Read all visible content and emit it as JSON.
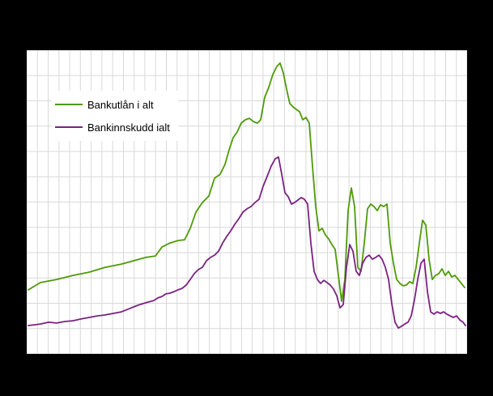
{
  "figure": {
    "background": "#000000",
    "plot_background": "#ffffff",
    "grid_color": "#d9d9d9"
  },
  "legend": {
    "items": [
      {
        "label": "Bankutlån i alt",
        "color": "#4e9a06"
      },
      {
        "label": "Bankinnskudd ialt",
        "color": "#7b2182"
      }
    ]
  },
  "chart_data": {
    "type": "line",
    "title": "",
    "xlabel": "",
    "ylabel": "",
    "legend_position": "top-left",
    "grid": {
      "on": true,
      "vertical_lines": 42,
      "horizontal_lines": 13
    },
    "y_axis": {
      "units_top": 12,
      "units_bottom": 0,
      "tick_labels_visible": false
    },
    "x_axis": {
      "tick_labels_visible": false
    },
    "series": [
      {
        "name": "Bankutlån i alt",
        "color": "#4e9a06",
        "points": [
          [
            2,
            2.53
          ],
          [
            17,
            2.82
          ],
          [
            37,
            2.94
          ],
          [
            57,
            3.1
          ],
          [
            77,
            3.23
          ],
          [
            97,
            3.42
          ],
          [
            117,
            3.55
          ],
          [
            132,
            3.68
          ],
          [
            147,
            3.81
          ],
          [
            159,
            3.87
          ],
          [
            167,
            4.22
          ],
          [
            177,
            4.38
          ],
          [
            187,
            4.48
          ],
          [
            195,
            4.51
          ],
          [
            202,
            4.96
          ],
          [
            209,
            5.6
          ],
          [
            217,
            5.98
          ],
          [
            225,
            6.24
          ],
          [
            232,
            6.94
          ],
          [
            239,
            7.1
          ],
          [
            245,
            7.49
          ],
          [
            250,
            8.06
          ],
          [
            255,
            8.54
          ],
          [
            260,
            8.77
          ],
          [
            265,
            9.12
          ],
          [
            270,
            9.25
          ],
          [
            275,
            9.31
          ],
          [
            280,
            9.18
          ],
          [
            285,
            9.12
          ],
          [
            289,
            9.25
          ],
          [
            294,
            10.14
          ],
          [
            299,
            10.53
          ],
          [
            304,
            11.04
          ],
          [
            309,
            11.36
          ],
          [
            313,
            11.49
          ],
          [
            317,
            11.1
          ],
          [
            321,
            10.46
          ],
          [
            325,
            9.89
          ],
          [
            329,
            9.76
          ],
          [
            333,
            9.66
          ],
          [
            337,
            9.57
          ],
          [
            341,
            9.25
          ],
          [
            345,
            9.34
          ],
          [
            349,
            9.12
          ],
          [
            353,
            7.42
          ],
          [
            357,
            5.82
          ],
          [
            361,
            4.86
          ],
          [
            365,
            4.96
          ],
          [
            369,
            4.7
          ],
          [
            373,
            4.54
          ],
          [
            377,
            4.32
          ],
          [
            381,
            4.13
          ],
          [
            385,
            3.1
          ],
          [
            389,
            2.08
          ],
          [
            393,
            2.94
          ],
          [
            397,
            5.66
          ],
          [
            401,
            6.56
          ],
          [
            405,
            5.82
          ],
          [
            409,
            3.42
          ],
          [
            413,
            3.26
          ],
          [
            417,
            4.38
          ],
          [
            421,
            5.73
          ],
          [
            425,
            5.92
          ],
          [
            429,
            5.82
          ],
          [
            433,
            5.66
          ],
          [
            437,
            5.89
          ],
          [
            441,
            5.82
          ],
          [
            445,
            5.92
          ],
          [
            449,
            4.38
          ],
          [
            453,
            3.58
          ],
          [
            457,
            2.94
          ],
          [
            461,
            2.78
          ],
          [
            465,
            2.69
          ],
          [
            469,
            2.72
          ],
          [
            473,
            2.85
          ],
          [
            477,
            2.78
          ],
          [
            481,
            3.42
          ],
          [
            485,
            4.38
          ],
          [
            489,
            5.28
          ],
          [
            493,
            5.09
          ],
          [
            497,
            3.74
          ],
          [
            501,
            2.94
          ],
          [
            505,
            3.1
          ],
          [
            509,
            3.17
          ],
          [
            513,
            3.36
          ],
          [
            517,
            3.1
          ],
          [
            521,
            3.26
          ],
          [
            525,
            3.04
          ],
          [
            529,
            3.1
          ],
          [
            533,
            2.94
          ],
          [
            537,
            2.78
          ],
          [
            541,
            2.62
          ]
        ]
      },
      {
        "name": "Bankinnskudd ialt",
        "color": "#7b2182",
        "points": [
          [
            2,
            1.12
          ],
          [
            17,
            1.18
          ],
          [
            27,
            1.25
          ],
          [
            37,
            1.22
          ],
          [
            47,
            1.28
          ],
          [
            57,
            1.31
          ],
          [
            67,
            1.38
          ],
          [
            77,
            1.44
          ],
          [
            87,
            1.5
          ],
          [
            97,
            1.54
          ],
          [
            107,
            1.6
          ],
          [
            117,
            1.66
          ],
          [
            127,
            1.79
          ],
          [
            137,
            1.92
          ],
          [
            147,
            2.02
          ],
          [
            157,
            2.11
          ],
          [
            162,
            2.21
          ],
          [
            167,
            2.27
          ],
          [
            172,
            2.37
          ],
          [
            177,
            2.4
          ],
          [
            182,
            2.46
          ],
          [
            187,
            2.53
          ],
          [
            192,
            2.59
          ],
          [
            197,
            2.72
          ],
          [
            202,
            2.94
          ],
          [
            207,
            3.17
          ],
          [
            212,
            3.33
          ],
          [
            217,
            3.42
          ],
          [
            222,
            3.68
          ],
          [
            227,
            3.81
          ],
          [
            232,
            3.9
          ],
          [
            237,
            4.06
          ],
          [
            242,
            4.38
          ],
          [
            247,
            4.64
          ],
          [
            252,
            4.86
          ],
          [
            257,
            5.12
          ],
          [
            262,
            5.34
          ],
          [
            267,
            5.6
          ],
          [
            272,
            5.73
          ],
          [
            277,
            5.82
          ],
          [
            282,
            5.98
          ],
          [
            287,
            6.11
          ],
          [
            292,
            6.62
          ],
          [
            297,
            7.01
          ],
          [
            302,
            7.42
          ],
          [
            307,
            7.71
          ],
          [
            311,
            7.78
          ],
          [
            315,
            7.1
          ],
          [
            319,
            6.37
          ],
          [
            323,
            6.21
          ],
          [
            327,
            5.92
          ],
          [
            331,
            5.98
          ],
          [
            335,
            6.08
          ],
          [
            339,
            6.18
          ],
          [
            343,
            6.11
          ],
          [
            347,
            5.92
          ],
          [
            351,
            4.38
          ],
          [
            355,
            3.26
          ],
          [
            359,
            2.94
          ],
          [
            363,
            2.78
          ],
          [
            367,
            2.91
          ],
          [
            371,
            2.82
          ],
          [
            375,
            2.72
          ],
          [
            379,
            2.56
          ],
          [
            383,
            2.3
          ],
          [
            387,
            1.82
          ],
          [
            391,
            1.95
          ],
          [
            395,
            3.42
          ],
          [
            399,
            4.32
          ],
          [
            403,
            4.06
          ],
          [
            407,
            3.26
          ],
          [
            411,
            3.1
          ],
          [
            415,
            3.58
          ],
          [
            419,
            3.81
          ],
          [
            423,
            3.9
          ],
          [
            427,
            3.74
          ],
          [
            431,
            3.81
          ],
          [
            435,
            3.9
          ],
          [
            439,
            3.74
          ],
          [
            443,
            3.42
          ],
          [
            447,
            2.94
          ],
          [
            451,
            1.98
          ],
          [
            455,
            1.25
          ],
          [
            459,
            1.02
          ],
          [
            463,
            1.09
          ],
          [
            467,
            1.18
          ],
          [
            471,
            1.25
          ],
          [
            475,
            1.5
          ],
          [
            479,
            2.14
          ],
          [
            483,
            2.94
          ],
          [
            487,
            3.58
          ],
          [
            491,
            3.74
          ],
          [
            495,
            2.46
          ],
          [
            499,
            1.66
          ],
          [
            503,
            1.57
          ],
          [
            507,
            1.66
          ],
          [
            511,
            1.6
          ],
          [
            515,
            1.66
          ],
          [
            519,
            1.57
          ],
          [
            523,
            1.5
          ],
          [
            527,
            1.44
          ],
          [
            531,
            1.5
          ],
          [
            535,
            1.34
          ],
          [
            539,
            1.25
          ],
          [
            542,
            1.12
          ]
        ]
      }
    ]
  }
}
